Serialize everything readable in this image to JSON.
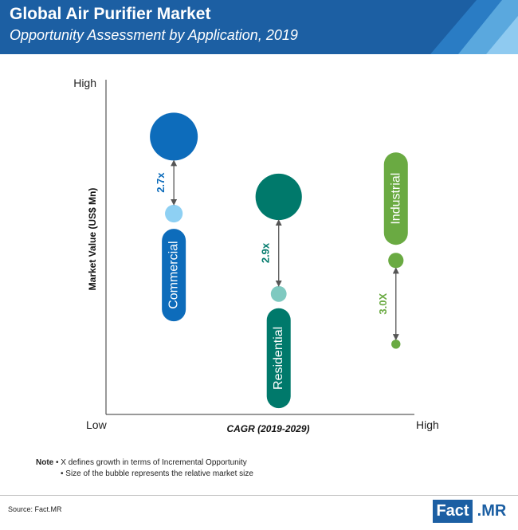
{
  "header": {
    "title": "Global Air Purifier Market",
    "subtitle": "Opportunity Assessment by Application, 2019",
    "bg_color": "#1c5fa3",
    "stripe_colors": [
      "#2a7cc4",
      "#5aa8de",
      "#8fcaf0"
    ]
  },
  "chart_data": {
    "type": "bubble",
    "title": "",
    "xlabel": "CAGR (2019-2029)",
    "ylabel": "Market Value (US$ Mn)",
    "axis_labels": {
      "x_low": "Low",
      "x_high": "High",
      "y_high": "High"
    },
    "xlim": [
      0,
      10
    ],
    "ylim": [
      0,
      10
    ],
    "grid": false,
    "legend": "none",
    "series": [
      {
        "name": "Commercial",
        "x": 2.2,
        "y_current": 8.3,
        "y_future": 6.0,
        "size_current": 1.0,
        "size_future": 0.37,
        "multiplier": "2.7x",
        "color_current": "#0d6cbb",
        "color_future": "#8ed0f3",
        "label_color": "#0d6cbb"
      },
      {
        "name": "Residential",
        "x": 5.6,
        "y_current": 6.5,
        "y_future": 3.6,
        "size_current": 0.97,
        "size_future": 0.33,
        "multiplier": "2.9x",
        "color_current": "#00796b",
        "color_future": "#7fc9c0",
        "label_color": "#00796b"
      },
      {
        "name": "Industrial",
        "x": 9.4,
        "y_current": 4.6,
        "y_future": 2.1,
        "size_current": 0.32,
        "size_future": 0.19,
        "multiplier": "3.0X",
        "color_current": "#6aaa42",
        "color_future": "#6aaa42",
        "label_color": "#6aaa42"
      }
    ]
  },
  "note": {
    "label": "Note",
    "items": [
      "X defines growth in terms of Incremental Opportunity",
      "Size of the bubble represents the relative market size"
    ]
  },
  "source": "Source: Fact.MR",
  "logo": {
    "left": "Fact",
    "right": ".MR"
  }
}
